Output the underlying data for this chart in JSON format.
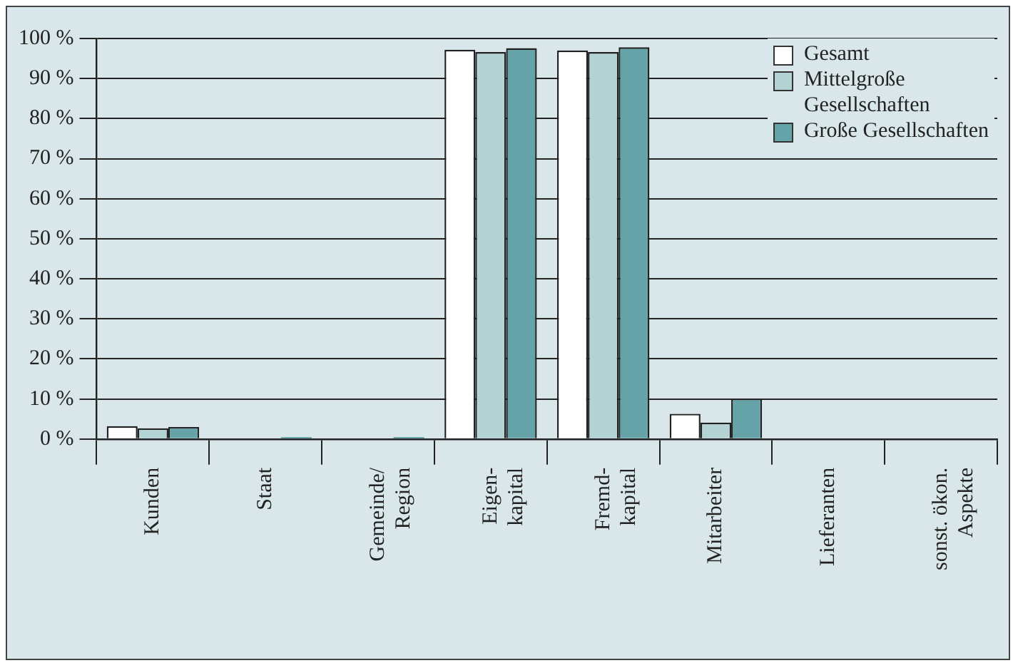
{
  "chart_data": {
    "type": "bar",
    "categories": [
      "Kunden",
      "Staat",
      "Gemeinde/\nRegion",
      "Eigen-\nkapital",
      "Fremd-\nkapital",
      "Mitarbeiter",
      "Lieferanten",
      "sonst. ökon.\nAspekte"
    ],
    "series": [
      {
        "name": "Gesamt",
        "color": "#ffffff",
        "values": [
          3.2,
          0,
          0,
          97.2,
          97,
          6.3,
          0,
          0
        ]
      },
      {
        "name": "Mittelgroße\nGesellschaften",
        "color": "#b3d3d4",
        "values": [
          2.7,
          0,
          0,
          96.6,
          96.6,
          4.1,
          0,
          0
        ]
      },
      {
        "name": "Große Gesellschaften",
        "color": "#66a3a8",
        "values": [
          3,
          0.5,
          0.5,
          97.6,
          97.8,
          10.1,
          0,
          0
        ]
      }
    ],
    "ylim": [
      0,
      100
    ],
    "yticks": [
      {
        "value": 0,
        "label": "0 %"
      },
      {
        "value": 10,
        "label": "10 %"
      },
      {
        "value": 20,
        "label": "20 %"
      },
      {
        "value": 30,
        "label": "30 %"
      },
      {
        "value": 40,
        "label": "40 %"
      },
      {
        "value": 50,
        "label": "50 %"
      },
      {
        "value": 60,
        "label": "60 %"
      },
      {
        "value": 70,
        "label": "70 %"
      },
      {
        "value": 80,
        "label": "80 %"
      },
      {
        "value": 90,
        "label": "90 %"
      },
      {
        "value": 100,
        "label": "100 %"
      }
    ],
    "grid": "y",
    "legend": "top right"
  }
}
